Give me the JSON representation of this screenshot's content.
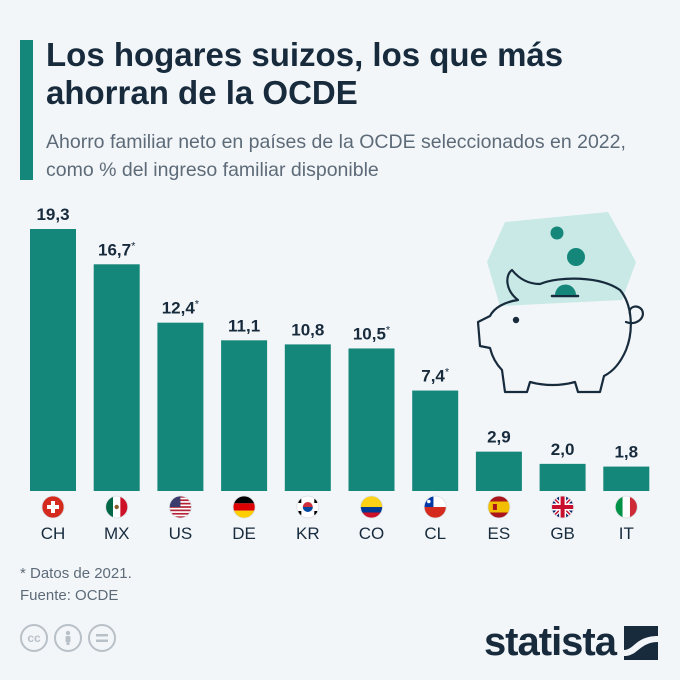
{
  "header": {
    "title": "Los hogares suizos, los que más ahorran de la OCDE",
    "subtitle": "Ahorro familiar neto en países de la OCDE seleccionados en 2022, como % del ingreso familiar disponible"
  },
  "chart_data": {
    "type": "bar",
    "title": "Los hogares suizos, los que más ahorran de la OCDE",
    "subtitle": "Ahorro familiar neto en países de la OCDE seleccionados en 2022, como % del ingreso familiar disponible",
    "categories": [
      "CH",
      "MX",
      "US",
      "DE",
      "KR",
      "CO",
      "CL",
      "ES",
      "GB",
      "IT"
    ],
    "values": [
      19.3,
      16.7,
      12.4,
      11.1,
      10.8,
      10.5,
      7.4,
      2.9,
      2.0,
      1.8
    ],
    "value_labels": [
      "19,3",
      "16,7*",
      "12,4*",
      "11,1",
      "10,8",
      "10,5*",
      "7,4*",
      "2,9",
      "2,0",
      "1,8"
    ],
    "ylim": [
      0,
      19.3
    ],
    "grid": false,
    "bar_color": "#15877a",
    "flags": [
      "switzerland-flag-icon",
      "mexico-flag-icon",
      "usa-flag-icon",
      "germany-flag-icon",
      "south-korea-flag-icon",
      "colombia-flag-icon",
      "chile-flag-icon",
      "spain-flag-icon",
      "uk-flag-icon",
      "italy-flag-icon"
    ]
  },
  "footnotes": {
    "note": "* Datos de 2021.",
    "source": "Fuente: OCDE"
  },
  "license_icons": [
    "cc-icon",
    "attribution-icon",
    "no-derivatives-icon"
  ],
  "brand": {
    "name": "statista",
    "color": "#172b3d"
  },
  "colors": {
    "accent": "#15877a",
    "illustration_bg": "#c8e9e6",
    "coin": "#15877a"
  }
}
